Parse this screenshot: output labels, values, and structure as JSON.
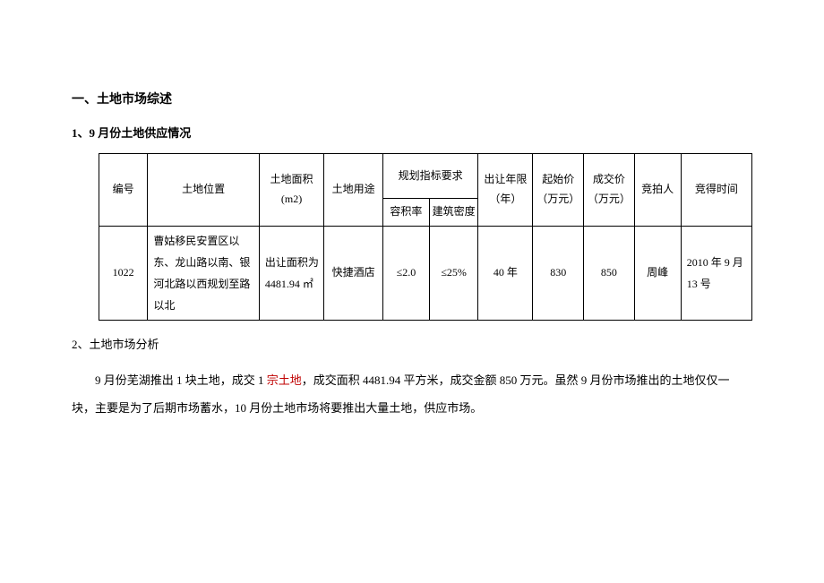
{
  "headings": {
    "h1": "一、土地市场综述",
    "h2": "1、9 月份土地供应情况",
    "h3": "2、土地市场分析"
  },
  "table": {
    "headers": {
      "id": "编号",
      "location": "土地位置",
      "area": "土地面积 (m2)",
      "use": "土地用途",
      "plan_group": "规划指标要求",
      "far": "容积率",
      "density": "建筑密度",
      "years": "出让年限（年）",
      "start_price": "起始价（万元）",
      "deal_price": "成交价（万元）",
      "bidder": "竞拍人",
      "date": "竞得时间"
    },
    "rows": [
      {
        "id": "1022",
        "location": "曹姑移民安置区以东、龙山路以南、银河北路以西规划至路以北",
        "area": "出让面积为 4481.94 ㎡",
        "use": "快捷酒店",
        "far": "≤2.0",
        "density": "≤25%",
        "years": "40 年",
        "start_price": "830",
        "deal_price": "850",
        "bidder": "周峰",
        "date": "2010 年 9 月 13 号"
      }
    ]
  },
  "paragraph": {
    "p1_a": "9 月份芜湖推出 1 块土地，成交 1 ",
    "p1_highlight": "宗土地",
    "p1_b": "，成交面积 4481.94 平方米，成交金额 850 万元。虽然 9 月份市场推出的土地仅仅一块，主要是为了后期市场蓄水，10 月份土地市场将要推出大量土地，供应市场。"
  },
  "colors": {
    "text": "#000000",
    "highlight": "#c00000",
    "background": "#ffffff",
    "border": "#000000"
  }
}
